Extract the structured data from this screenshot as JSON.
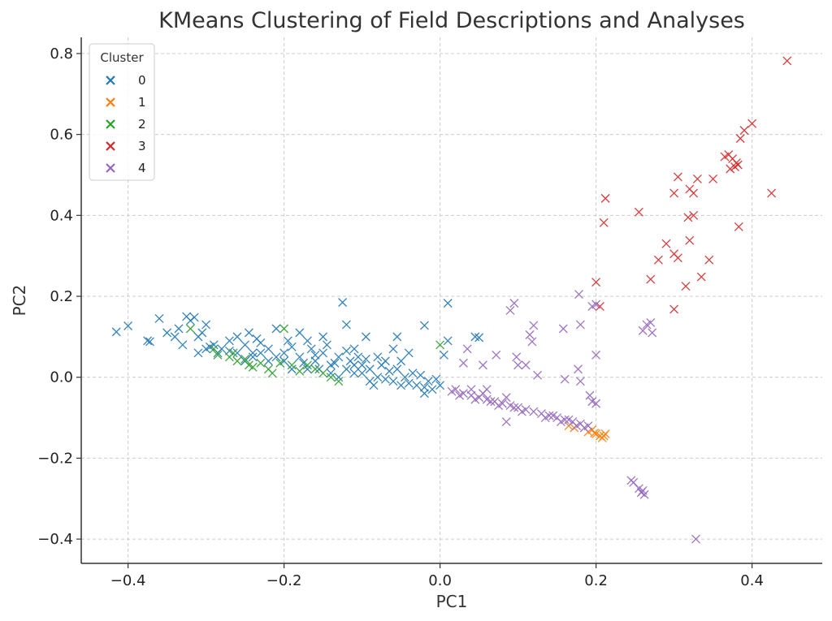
{
  "chart_data": {
    "type": "scatter",
    "title": "KMeans Clustering of Field Descriptions and Analyses",
    "xlabel": "PC1",
    "ylabel": "PC2",
    "xlim": [
      -0.46,
      0.49
    ],
    "ylim": [
      -0.46,
      0.84
    ],
    "xticks": [
      -0.4,
      -0.2,
      0.0,
      0.2,
      0.4
    ],
    "xtick_labels": [
      "−0.4",
      "−0.2",
      "0.0",
      "0.2",
      "0.4"
    ],
    "yticks": [
      -0.4,
      -0.2,
      0.0,
      0.2,
      0.4,
      0.6,
      0.8
    ],
    "ytick_labels": [
      "−0.4",
      "−0.2",
      "0.0",
      "0.2",
      "0.4",
      "0.6",
      "0.8"
    ],
    "grid": true,
    "marker": "x",
    "legend": {
      "title": "Cluster",
      "placement": "top-left"
    },
    "series": [
      {
        "name": "0",
        "color": "#1f77b4",
        "points": [
          [
            -0.415,
            0.112
          ],
          [
            -0.4,
            0.127
          ],
          [
            -0.375,
            0.09
          ],
          [
            -0.372,
            0.088
          ],
          [
            -0.36,
            0.145
          ],
          [
            -0.35,
            0.11
          ],
          [
            -0.34,
            0.1
          ],
          [
            -0.335,
            0.12
          ],
          [
            -0.33,
            0.08
          ],
          [
            -0.325,
            0.15
          ],
          [
            -0.32,
            0.14
          ],
          [
            -0.315,
            0.148
          ],
          [
            -0.31,
            0.1
          ],
          [
            -0.305,
            0.11
          ],
          [
            -0.3,
            0.13
          ],
          [
            -0.295,
            0.075
          ],
          [
            -0.29,
            0.08
          ],
          [
            -0.28,
            0.07
          ],
          [
            -0.27,
            0.09
          ],
          [
            -0.26,
            0.1
          ],
          [
            -0.25,
            0.08
          ],
          [
            -0.245,
            0.11
          ],
          [
            -0.24,
            0.06
          ],
          [
            -0.235,
            0.095
          ],
          [
            -0.23,
            0.085
          ],
          [
            -0.22,
            0.07
          ],
          [
            -0.21,
            0.12
          ],
          [
            -0.2,
            0.06
          ],
          [
            -0.19,
            0.075
          ],
          [
            -0.18,
            0.05
          ],
          [
            -0.17,
            0.09
          ],
          [
            -0.16,
            0.04
          ],
          [
            -0.15,
            0.06
          ],
          [
            -0.14,
            0.03
          ],
          [
            -0.13,
            0.05
          ],
          [
            -0.12,
            0.02
          ],
          [
            -0.11,
            0.03
          ],
          [
            -0.1,
            0.01
          ],
          [
            -0.09,
            0.02
          ],
          [
            -0.08,
            0.0
          ],
          [
            -0.07,
            -0.005
          ],
          [
            -0.06,
            -0.01
          ],
          [
            -0.05,
            -0.02
          ],
          [
            -0.04,
            -0.015
          ],
          [
            -0.03,
            -0.02
          ],
          [
            -0.02,
            -0.025
          ],
          [
            -0.01,
            -0.03
          ],
          [
            0.0,
            -0.02
          ],
          [
            -0.125,
            0.185
          ],
          [
            -0.12,
            0.13
          ],
          [
            -0.095,
            0.1
          ],
          [
            -0.055,
            0.1
          ],
          [
            -0.02,
            0.128
          ],
          [
            0.01,
            0.183
          ],
          [
            0.01,
            0.09
          ],
          [
            0.05,
            0.098
          ],
          [
            0.045,
            0.1
          ],
          [
            0.005,
            0.055
          ],
          [
            -0.18,
            0.11
          ],
          [
            -0.15,
            0.1
          ],
          [
            -0.17,
            0.02
          ],
          [
            -0.13,
            0.0
          ],
          [
            -0.09,
            -0.01
          ],
          [
            -0.11,
            0.07
          ],
          [
            -0.05,
            0.04
          ],
          [
            -0.06,
            0.07
          ],
          [
            -0.02,
            -0.04
          ],
          [
            -0.2,
            0.04
          ],
          [
            -0.22,
            0.04
          ],
          [
            -0.26,
            0.06
          ],
          [
            -0.165,
            0.07
          ],
          [
            -0.145,
            0.08
          ],
          [
            -0.105,
            0.05
          ],
          [
            -0.075,
            0.03
          ],
          [
            -0.035,
            0.01
          ],
          [
            -0.04,
            0.06
          ],
          [
            -0.08,
            0.05
          ],
          [
            -0.14,
            0.01
          ],
          [
            -0.19,
            0.02
          ],
          [
            -0.24,
            0.05
          ],
          [
            -0.285,
            0.06
          ],
          [
            -0.195,
            0.09
          ],
          [
            -0.155,
            0.02
          ],
          [
            -0.115,
            0.04
          ],
          [
            -0.085,
            -0.02
          ],
          [
            -0.065,
            0.015
          ],
          [
            -0.045,
            0.0
          ],
          [
            -0.025,
            0.005
          ],
          [
            -0.015,
            -0.01
          ],
          [
            -0.005,
            -0.005
          ],
          [
            -0.21,
            0.05
          ],
          [
            -0.175,
            0.035
          ],
          [
            -0.135,
            0.035
          ],
          [
            -0.1,
            0.03
          ],
          [
            -0.07,
            0.04
          ],
          [
            -0.23,
            0.06
          ],
          [
            -0.27,
            0.065
          ],
          [
            -0.3,
            0.07
          ],
          [
            -0.31,
            0.06
          ],
          [
            -0.25,
            0.04
          ],
          [
            -0.16,
            0.055
          ],
          [
            -0.12,
            0.065
          ],
          [
            -0.11,
            0.01
          ],
          [
            -0.095,
            0.045
          ],
          [
            -0.055,
            0.02
          ]
        ]
      },
      {
        "name": "1",
        "color": "#ff7f0e",
        "points": [
          [
            0.165,
            -0.12
          ],
          [
            0.172,
            -0.125
          ],
          [
            0.19,
            -0.135
          ],
          [
            0.2,
            -0.14
          ],
          [
            0.205,
            -0.145
          ],
          [
            0.208,
            -0.15
          ],
          [
            0.21,
            -0.145
          ],
          [
            0.212,
            -0.14
          ],
          [
            0.198,
            -0.138
          ],
          [
            0.195,
            -0.13
          ]
        ]
      },
      {
        "name": "2",
        "color": "#2ca02c",
        "points": [
          [
            -0.32,
            0.12
          ],
          [
            -0.29,
            0.07
          ],
          [
            -0.285,
            0.055
          ],
          [
            -0.27,
            0.05
          ],
          [
            -0.265,
            0.06
          ],
          [
            -0.26,
            0.04
          ],
          [
            -0.25,
            0.045
          ],
          [
            -0.245,
            0.03
          ],
          [
            -0.24,
            0.025
          ],
          [
            -0.23,
            0.035
          ],
          [
            -0.22,
            0.02
          ],
          [
            -0.215,
            0.01
          ],
          [
            -0.205,
            0.035
          ],
          [
            -0.2,
            0.12
          ],
          [
            -0.19,
            0.03
          ],
          [
            -0.18,
            0.015
          ],
          [
            -0.17,
            0.03
          ],
          [
            -0.16,
            0.02
          ],
          [
            -0.15,
            0.01
          ],
          [
            -0.14,
            0.0
          ],
          [
            -0.13,
            -0.01
          ],
          [
            0.0,
            0.08
          ]
        ]
      },
      {
        "name": "3",
        "color": "#d62728",
        "points": [
          [
            0.445,
            0.782
          ],
          [
            0.4,
            0.627
          ],
          [
            0.39,
            0.61
          ],
          [
            0.385,
            0.59
          ],
          [
            0.37,
            0.55
          ],
          [
            0.365,
            0.545
          ],
          [
            0.375,
            0.54
          ],
          [
            0.38,
            0.53
          ],
          [
            0.378,
            0.52
          ],
          [
            0.372,
            0.515
          ],
          [
            0.382,
            0.525
          ],
          [
            0.35,
            0.49
          ],
          [
            0.33,
            0.49
          ],
          [
            0.305,
            0.495
          ],
          [
            0.32,
            0.465
          ],
          [
            0.325,
            0.455
          ],
          [
            0.3,
            0.455
          ],
          [
            0.425,
            0.455
          ],
          [
            0.212,
            0.442
          ],
          [
            0.255,
            0.408
          ],
          [
            0.325,
            0.4
          ],
          [
            0.318,
            0.395
          ],
          [
            0.21,
            0.382
          ],
          [
            0.383,
            0.372
          ],
          [
            0.32,
            0.338
          ],
          [
            0.29,
            0.33
          ],
          [
            0.3,
            0.305
          ],
          [
            0.305,
            0.295
          ],
          [
            0.28,
            0.29
          ],
          [
            0.345,
            0.29
          ],
          [
            0.335,
            0.248
          ],
          [
            0.27,
            0.242
          ],
          [
            0.315,
            0.225
          ],
          [
            0.2,
            0.235
          ],
          [
            0.205,
            0.175
          ],
          [
            0.3,
            0.168
          ]
        ]
      },
      {
        "name": "4",
        "color": "#9467bd",
        "points": [
          [
            0.095,
            0.183
          ],
          [
            0.09,
            0.165
          ],
          [
            0.178,
            0.205
          ],
          [
            0.2,
            0.18
          ],
          [
            0.195,
            0.175
          ],
          [
            0.18,
            0.13
          ],
          [
            0.158,
            0.12
          ],
          [
            0.12,
            0.128
          ],
          [
            0.115,
            0.105
          ],
          [
            0.118,
            0.088
          ],
          [
            0.035,
            0.07
          ],
          [
            0.03,
            0.035
          ],
          [
            0.055,
            0.03
          ],
          [
            0.072,
            0.055
          ],
          [
            0.098,
            0.05
          ],
          [
            0.1,
            0.03
          ],
          [
            0.11,
            0.03
          ],
          [
            0.125,
            0.005
          ],
          [
            0.16,
            -0.005
          ],
          [
            0.177,
            0.02
          ],
          [
            0.18,
            -0.01
          ],
          [
            0.2,
            0.055
          ],
          [
            0.26,
            0.115
          ],
          [
            0.265,
            0.13
          ],
          [
            0.27,
            0.135
          ],
          [
            0.272,
            0.11
          ],
          [
            0.192,
            -0.045
          ],
          [
            0.195,
            -0.06
          ],
          [
            0.2,
            -0.065
          ],
          [
            0.02,
            -0.03
          ],
          [
            0.03,
            -0.04
          ],
          [
            0.04,
            -0.045
          ],
          [
            0.05,
            -0.05
          ],
          [
            0.06,
            -0.055
          ],
          [
            0.07,
            -0.06
          ],
          [
            0.08,
            -0.065
          ],
          [
            0.09,
            -0.07
          ],
          [
            0.1,
            -0.075
          ],
          [
            0.11,
            -0.08
          ],
          [
            0.12,
            -0.085
          ],
          [
            0.13,
            -0.09
          ],
          [
            0.14,
            -0.095
          ],
          [
            0.15,
            -0.1
          ],
          [
            0.16,
            -0.105
          ],
          [
            0.17,
            -0.11
          ],
          [
            0.18,
            -0.115
          ],
          [
            0.19,
            -0.12
          ],
          [
            0.085,
            -0.11
          ],
          [
            0.245,
            -0.255
          ],
          [
            0.248,
            -0.26
          ],
          [
            0.255,
            -0.275
          ],
          [
            0.26,
            -0.28
          ],
          [
            0.262,
            -0.29
          ],
          [
            0.258,
            -0.285
          ],
          [
            0.328,
            -0.4
          ],
          [
            0.015,
            -0.035
          ],
          [
            0.025,
            -0.045
          ],
          [
            0.045,
            -0.055
          ],
          [
            0.065,
            -0.06
          ],
          [
            0.075,
            -0.07
          ],
          [
            0.095,
            -0.075
          ],
          [
            0.105,
            -0.085
          ],
          [
            0.135,
            -0.1
          ],
          [
            0.145,
            -0.095
          ],
          [
            0.155,
            -0.11
          ],
          [
            0.165,
            -0.105
          ],
          [
            0.175,
            -0.12
          ],
          [
            0.185,
            -0.125
          ],
          [
            0.055,
            -0.04
          ],
          [
            0.085,
            -0.05
          ],
          [
            0.06,
            -0.03
          ],
          [
            0.04,
            -0.03
          ]
        ]
      }
    ]
  }
}
